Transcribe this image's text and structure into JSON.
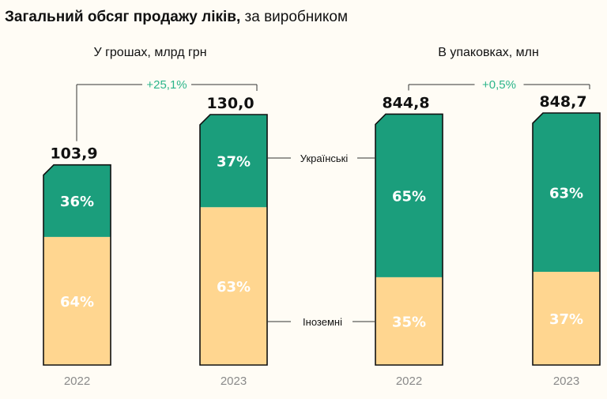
{
  "chart_data": {
    "type": "bar",
    "stacked": "percent",
    "title_bold": "Загальний обсяг продажу ліків,",
    "title_regular": " за виробником",
    "colors": {
      "ukrainian": "#1b9e7c",
      "foreign": "#ffd690",
      "growth": "#2bb58a",
      "text": "#111111",
      "axis_text": "#8a8a8a"
    },
    "legend": {
      "ukrainian": "Українські",
      "foreign": "Іноземні"
    },
    "groups": [
      {
        "subtitle": "У грошах, млрд грн",
        "growth_label": "+25,1%",
        "bars": [
          {
            "year": "2022",
            "total": 103.9,
            "total_label": "103,9",
            "ukrainian_pct": 36,
            "ukrainian_label": "36%",
            "foreign_pct": 64,
            "foreign_label": "64%"
          },
          {
            "year": "2023",
            "total": 130.0,
            "total_label": "130,0",
            "ukrainian_pct": 37,
            "ukrainian_label": "37%",
            "foreign_pct": 63,
            "foreign_label": "63%"
          }
        ]
      },
      {
        "subtitle": "В упаковках, млн",
        "growth_label": "+0,5%",
        "bars": [
          {
            "year": "2022",
            "total": 844.8,
            "total_label": "844,8",
            "ukrainian_pct": 65,
            "ukrainian_label": "65%",
            "foreign_pct": 35,
            "foreign_label": "35%"
          },
          {
            "year": "2023",
            "total": 848.7,
            "total_label": "848,7",
            "ukrainian_pct": 63,
            "ukrainian_label": "63%",
            "foreign_pct": 37,
            "foreign_label": "37%"
          }
        ]
      }
    ]
  }
}
